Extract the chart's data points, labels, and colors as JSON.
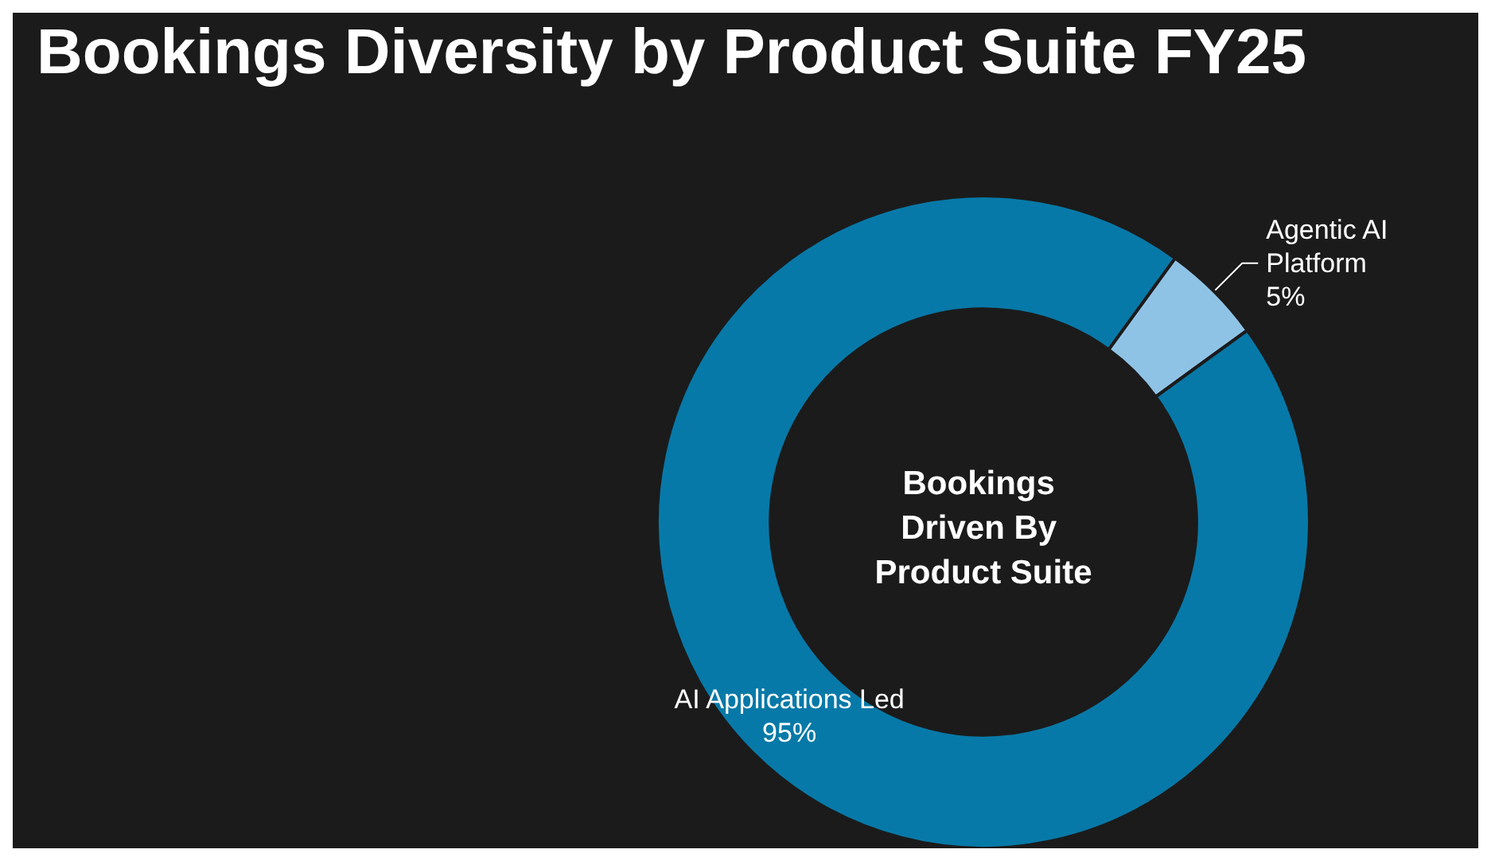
{
  "chart_data": {
    "type": "donut",
    "title": "Bookings Diversity by Product Suite FY25",
    "categories": [
      "Agentic AI Platform",
      "AI Applications Led"
    ],
    "values": [
      5,
      95
    ],
    "value_labels": [
      "5%",
      "95%"
    ],
    "colors": [
      "#8fc3e6",
      "#0779a8"
    ],
    "annotations": [
      "Bookings Driven By Product Suite"
    ]
  }
}
